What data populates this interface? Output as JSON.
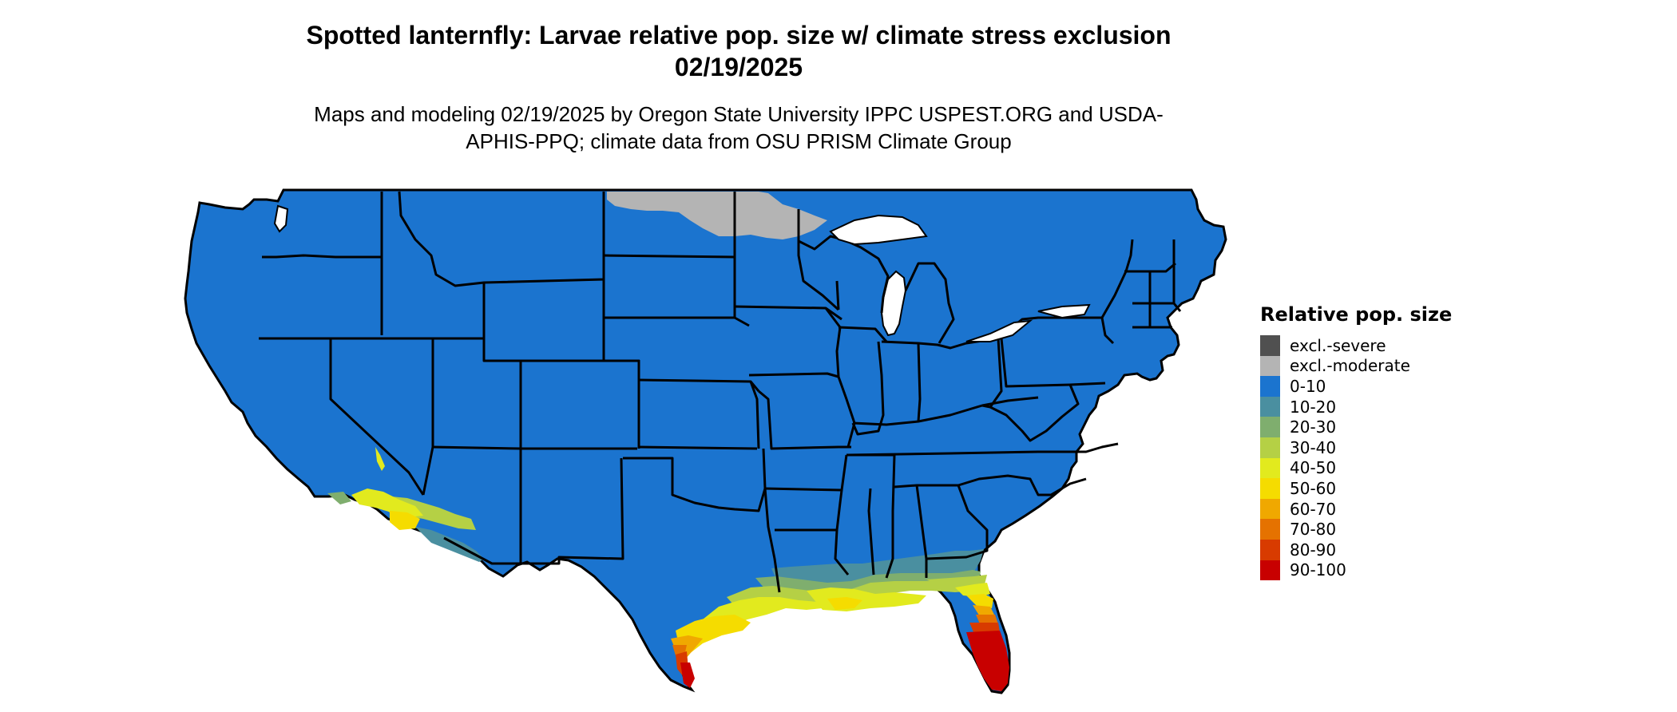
{
  "header": {
    "title": "Spotted lanternfly: Larvae relative pop. size w/ climate stress exclusion 02/19/2025",
    "subtitle": "Maps and modeling 02/19/2025 by Oregon State University IPPC USPEST.ORG and USDA-APHIS-PPQ; climate data from OSU PRISM Climate Group"
  },
  "legend": {
    "title": "Relative pop. size",
    "items": [
      {
        "label": "excl.-severe",
        "color": "#505050"
      },
      {
        "label": "excl.-moderate",
        "color": "#b4b4b4"
      },
      {
        "label": "0-10",
        "color": "#1b74cf"
      },
      {
        "label": "10-20",
        "color": "#4a8fa0"
      },
      {
        "label": "20-30",
        "color": "#7fae6e"
      },
      {
        "label": "30-40",
        "color": "#b5d045"
      },
      {
        "label": "40-50",
        "color": "#e2ea1e"
      },
      {
        "label": "50-60",
        "color": "#f5dc00"
      },
      {
        "label": "60-70",
        "color": "#f0a800"
      },
      {
        "label": "70-80",
        "color": "#e57200"
      },
      {
        "label": "80-90",
        "color": "#d83b00"
      },
      {
        "label": "90-100",
        "color": "#c80000"
      }
    ]
  },
  "map": {
    "region": "Contiguous United States",
    "base_color": "#1b74cf",
    "border_color": "#000000"
  }
}
